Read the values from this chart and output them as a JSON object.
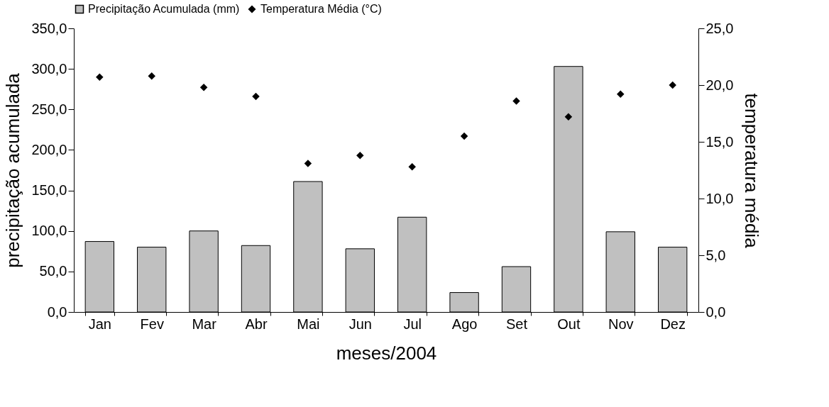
{
  "chart_data": {
    "type": "bar",
    "xlabel": "meses/2004",
    "ylabel": "precipitação acumulada",
    "y2label": "temperatura média",
    "categories": [
      "Jan",
      "Fev",
      "Mar",
      "Abr",
      "Mai",
      "Jun",
      "Jul",
      "Ago",
      "Set",
      "Out",
      "Nov",
      "Dez"
    ],
    "series": [
      {
        "name": "Precipitação Acumulada (mm)",
        "color": "#c0c0c0",
        "values": [
          87,
          80,
          100,
          82,
          161,
          78,
          117,
          24,
          56,
          303,
          99,
          80
        ]
      },
      {
        "name": "Temperatura Média (°C)",
        "type": "scatter",
        "axis": "y2",
        "marker": "diamond",
        "color": "#000000",
        "values": [
          20.7,
          20.8,
          19.8,
          19.0,
          13.1,
          13.8,
          12.8,
          15.5,
          18.6,
          17.2,
          19.2,
          20.0
        ]
      }
    ],
    "ylim": [
      0,
      350
    ],
    "yticks": [
      {
        "value": 0,
        "label": "0,0"
      },
      {
        "value": 50,
        "label": "50,0"
      },
      {
        "value": 100,
        "label": "100,0"
      },
      {
        "value": 150,
        "label": "150,0"
      },
      {
        "value": 200,
        "label": "200,0"
      },
      {
        "value": 250,
        "label": "250,0"
      },
      {
        "value": 300,
        "label": "300,0"
      },
      {
        "value": 350,
        "label": "350,0"
      }
    ],
    "y2lim": [
      0,
      25
    ],
    "y2ticks": [
      {
        "value": 0,
        "label": "0,0"
      },
      {
        "value": 5,
        "label": "5,0"
      },
      {
        "value": 10,
        "label": "10,0"
      },
      {
        "value": 15,
        "label": "15,0"
      },
      {
        "value": 20,
        "label": "20,0"
      },
      {
        "value": 25,
        "label": "25,0"
      }
    ],
    "legend": "top",
    "grid": false
  }
}
